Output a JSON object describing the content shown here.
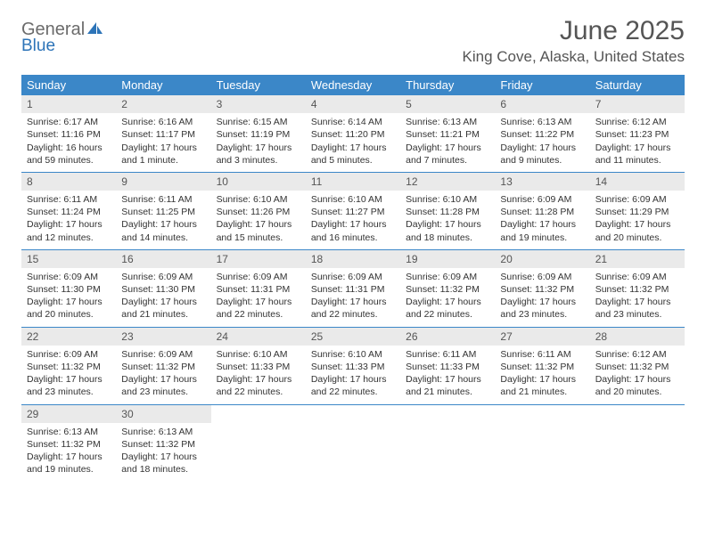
{
  "brand": {
    "top": "General",
    "bottom": "Blue"
  },
  "title": {
    "month": "June 2025",
    "location": "King Cove, Alaska, United States"
  },
  "columns": [
    "Sunday",
    "Monday",
    "Tuesday",
    "Wednesday",
    "Thursday",
    "Friday",
    "Saturday"
  ],
  "colors": {
    "header_bg": "#3b87c8",
    "header_text": "#ffffff",
    "daynum_bg": "#eaeaea",
    "text": "#333333",
    "rule": "#3b87c8"
  },
  "days": [
    {
      "n": 1,
      "sr": "6:17 AM",
      "ss": "11:16 PM",
      "dl": "16 hours and 59 minutes."
    },
    {
      "n": 2,
      "sr": "6:16 AM",
      "ss": "11:17 PM",
      "dl": "17 hours and 1 minute."
    },
    {
      "n": 3,
      "sr": "6:15 AM",
      "ss": "11:19 PM",
      "dl": "17 hours and 3 minutes."
    },
    {
      "n": 4,
      "sr": "6:14 AM",
      "ss": "11:20 PM",
      "dl": "17 hours and 5 minutes."
    },
    {
      "n": 5,
      "sr": "6:13 AM",
      "ss": "11:21 PM",
      "dl": "17 hours and 7 minutes."
    },
    {
      "n": 6,
      "sr": "6:13 AM",
      "ss": "11:22 PM",
      "dl": "17 hours and 9 minutes."
    },
    {
      "n": 7,
      "sr": "6:12 AM",
      "ss": "11:23 PM",
      "dl": "17 hours and 11 minutes."
    },
    {
      "n": 8,
      "sr": "6:11 AM",
      "ss": "11:24 PM",
      "dl": "17 hours and 12 minutes."
    },
    {
      "n": 9,
      "sr": "6:11 AM",
      "ss": "11:25 PM",
      "dl": "17 hours and 14 minutes."
    },
    {
      "n": 10,
      "sr": "6:10 AM",
      "ss": "11:26 PM",
      "dl": "17 hours and 15 minutes."
    },
    {
      "n": 11,
      "sr": "6:10 AM",
      "ss": "11:27 PM",
      "dl": "17 hours and 16 minutes."
    },
    {
      "n": 12,
      "sr": "6:10 AM",
      "ss": "11:28 PM",
      "dl": "17 hours and 18 minutes."
    },
    {
      "n": 13,
      "sr": "6:09 AM",
      "ss": "11:28 PM",
      "dl": "17 hours and 19 minutes."
    },
    {
      "n": 14,
      "sr": "6:09 AM",
      "ss": "11:29 PM",
      "dl": "17 hours and 20 minutes."
    },
    {
      "n": 15,
      "sr": "6:09 AM",
      "ss": "11:30 PM",
      "dl": "17 hours and 20 minutes."
    },
    {
      "n": 16,
      "sr": "6:09 AM",
      "ss": "11:30 PM",
      "dl": "17 hours and 21 minutes."
    },
    {
      "n": 17,
      "sr": "6:09 AM",
      "ss": "11:31 PM",
      "dl": "17 hours and 22 minutes."
    },
    {
      "n": 18,
      "sr": "6:09 AM",
      "ss": "11:31 PM",
      "dl": "17 hours and 22 minutes."
    },
    {
      "n": 19,
      "sr": "6:09 AM",
      "ss": "11:32 PM",
      "dl": "17 hours and 22 minutes."
    },
    {
      "n": 20,
      "sr": "6:09 AM",
      "ss": "11:32 PM",
      "dl": "17 hours and 23 minutes."
    },
    {
      "n": 21,
      "sr": "6:09 AM",
      "ss": "11:32 PM",
      "dl": "17 hours and 23 minutes."
    },
    {
      "n": 22,
      "sr": "6:09 AM",
      "ss": "11:32 PM",
      "dl": "17 hours and 23 minutes."
    },
    {
      "n": 23,
      "sr": "6:09 AM",
      "ss": "11:32 PM",
      "dl": "17 hours and 23 minutes."
    },
    {
      "n": 24,
      "sr": "6:10 AM",
      "ss": "11:33 PM",
      "dl": "17 hours and 22 minutes."
    },
    {
      "n": 25,
      "sr": "6:10 AM",
      "ss": "11:33 PM",
      "dl": "17 hours and 22 minutes."
    },
    {
      "n": 26,
      "sr": "6:11 AM",
      "ss": "11:33 PM",
      "dl": "17 hours and 21 minutes."
    },
    {
      "n": 27,
      "sr": "6:11 AM",
      "ss": "11:32 PM",
      "dl": "17 hours and 21 minutes."
    },
    {
      "n": 28,
      "sr": "6:12 AM",
      "ss": "11:32 PM",
      "dl": "17 hours and 20 minutes."
    },
    {
      "n": 29,
      "sr": "6:13 AM",
      "ss": "11:32 PM",
      "dl": "17 hours and 19 minutes."
    },
    {
      "n": 30,
      "sr": "6:13 AM",
      "ss": "11:32 PM",
      "dl": "17 hours and 18 minutes."
    }
  ],
  "labels": {
    "sunrise": "Sunrise:",
    "sunset": "Sunset:",
    "daylight": "Daylight:"
  },
  "layout": {
    "start_weekday": 0,
    "total_cells": 35
  }
}
